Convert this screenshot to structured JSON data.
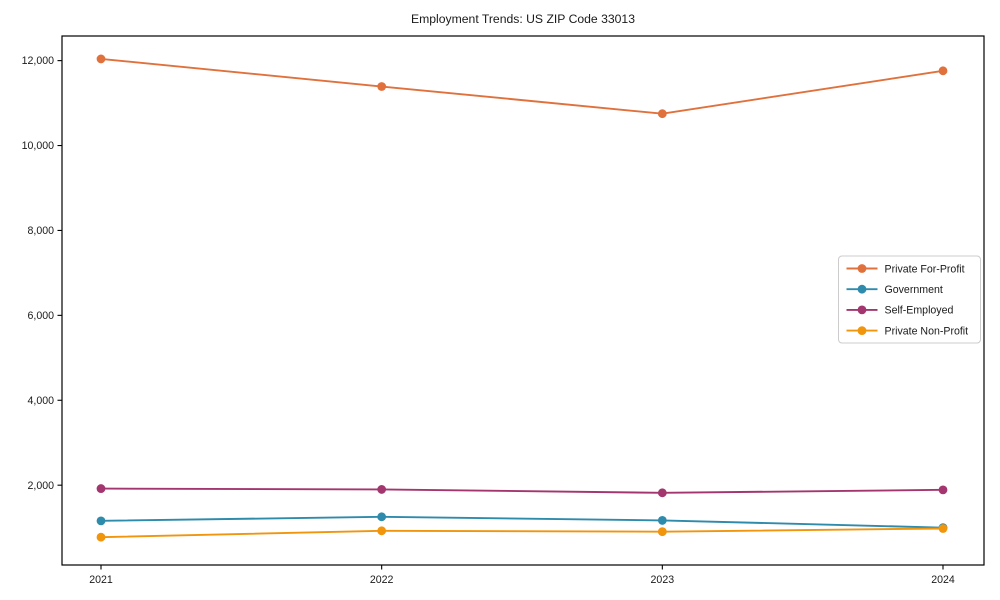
{
  "chart_data": {
    "type": "line",
    "title": "Employment Trends: US ZIP Code 33013",
    "x": [
      2021,
      2022,
      2023,
      2024
    ],
    "x_tick_labels": [
      "2021",
      "2022",
      "2023",
      "2024"
    ],
    "series": [
      {
        "name": "Private For-Profit",
        "color": "#e0713c",
        "values": [
          12040,
          11390,
          10750,
          11760
        ]
      },
      {
        "name": "Government",
        "color": "#2e8bab",
        "values": [
          1160,
          1255,
          1170,
          1000
        ]
      },
      {
        "name": "Self-Employed",
        "color": "#a4366f",
        "values": [
          1920,
          1900,
          1820,
          1890
        ]
      },
      {
        "name": "Private Non-Profit",
        "color": "#f0950c",
        "values": [
          775,
          925,
          905,
          980
        ]
      }
    ],
    "yticks": [
      2000,
      4000,
      6000,
      8000,
      10000,
      12000
    ],
    "y_tick_labels": [
      "2,000",
      "4,000",
      "6,000",
      "8,000",
      "10,000",
      "12,000"
    ],
    "ylim": [
      120,
      12580
    ],
    "grid": false,
    "legend_position": "center right",
    "axis_color": "#000000",
    "background_color": "#ffffff"
  }
}
